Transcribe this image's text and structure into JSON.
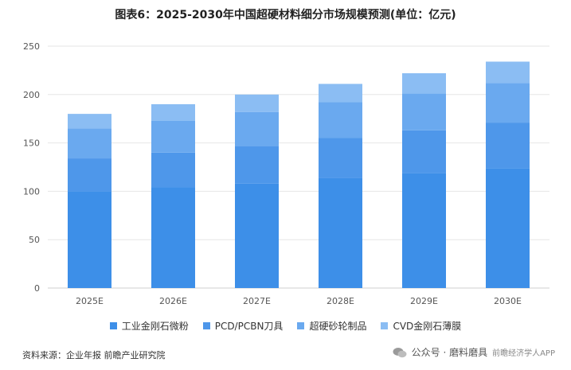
{
  "title": "图表6：2025-2030年中国超硬材料细分市场规模预测(单位：亿元)",
  "chart_data": {
    "type": "bar",
    "stacked": true,
    "categories": [
      "2025E",
      "2026E",
      "2027E",
      "2028E",
      "2029E",
      "2030E"
    ],
    "series": [
      {
        "name": "工业金刚石微粉",
        "color": "#3d8fe8",
        "values": [
          100,
          104,
          108,
          114,
          119,
          124
        ]
      },
      {
        "name": "PCD/PCBN刀具",
        "color": "#4e97ea",
        "values": [
          34,
          36,
          39,
          41,
          44,
          47
        ]
      },
      {
        "name": "超硬砂轮制品",
        "color": "#6aa9ef",
        "values": [
          31,
          33,
          35,
          37,
          38,
          41
        ]
      },
      {
        "name": "CVD金刚石薄膜",
        "color": "#8bbdf3",
        "values": [
          15,
          17,
          18,
          19,
          21,
          22
        ]
      }
    ],
    "yticks": [
      "0",
      "50",
      "100",
      "150",
      "200",
      "250"
    ],
    "ylim": [
      0,
      250
    ],
    "grid": true,
    "legend_position": "bottom"
  },
  "source": "资料来源：企业年报 前瞻产业研究院",
  "watermark": "公众号 · 磨料磨具",
  "watermark_sub": "前瞻经济学人APP"
}
